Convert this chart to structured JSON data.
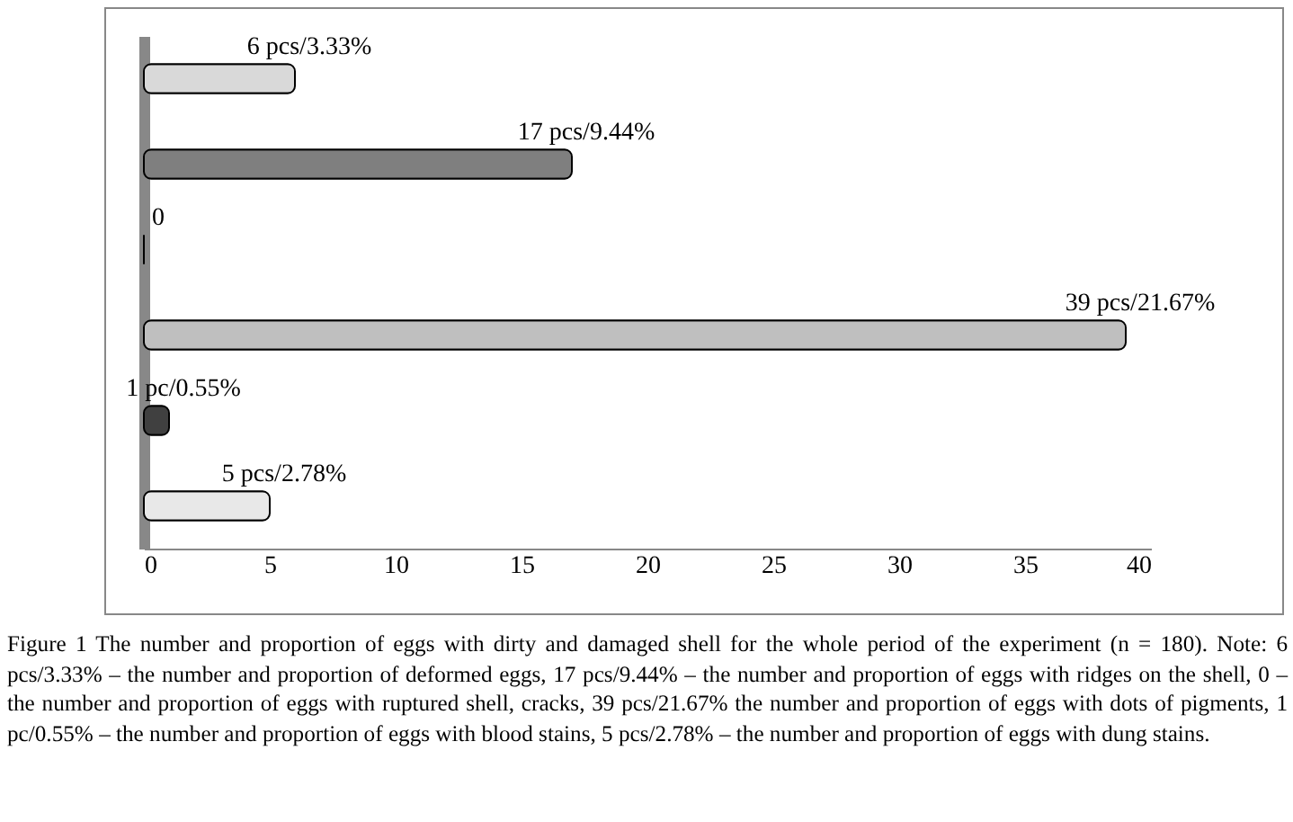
{
  "chart_data": {
    "type": "bar",
    "orientation": "horizontal",
    "categories": [
      null,
      null,
      null,
      null,
      null,
      null
    ],
    "values": [
      6,
      17,
      0,
      39,
      1,
      5
    ],
    "colors": [
      "#d9d9d9",
      "#7f7f7f",
      "#000000",
      "#bfbfbf",
      "#404040",
      "#e8e8e8"
    ],
    "value_labels": [
      "6 pcs/3.33%",
      "17 pcs/9.44%",
      "0",
      "39 pcs/21.67%",
      "1 pc/0.55%",
      "5 pcs/2.78%"
    ],
    "xlim": [
      0,
      40
    ],
    "xticks": [
      0,
      5,
      10,
      15,
      20,
      25,
      30,
      35,
      40
    ],
    "grid": false,
    "legend": false,
    "annotations": [
      "Figure 1 The number and proportion of eggs with dirty and damaged shell for the whole period of the experiment (n = 180). Note: 6 pcs/3.33% – the number and proportion of deformed eggs, 17 pcs/9.44% – the number and proportion of eggs with ridges on the shell, 0 – the number and proportion of eggs with ruptured shell, cracks, 39 pcs/21.67% the number and proportion of eggs with dots of pigments, 1 pc/0.55% – the number and proportion of eggs with blood stains, 5 pcs/2.78% – the number and proportion of eggs with dung stains."
    ]
  }
}
